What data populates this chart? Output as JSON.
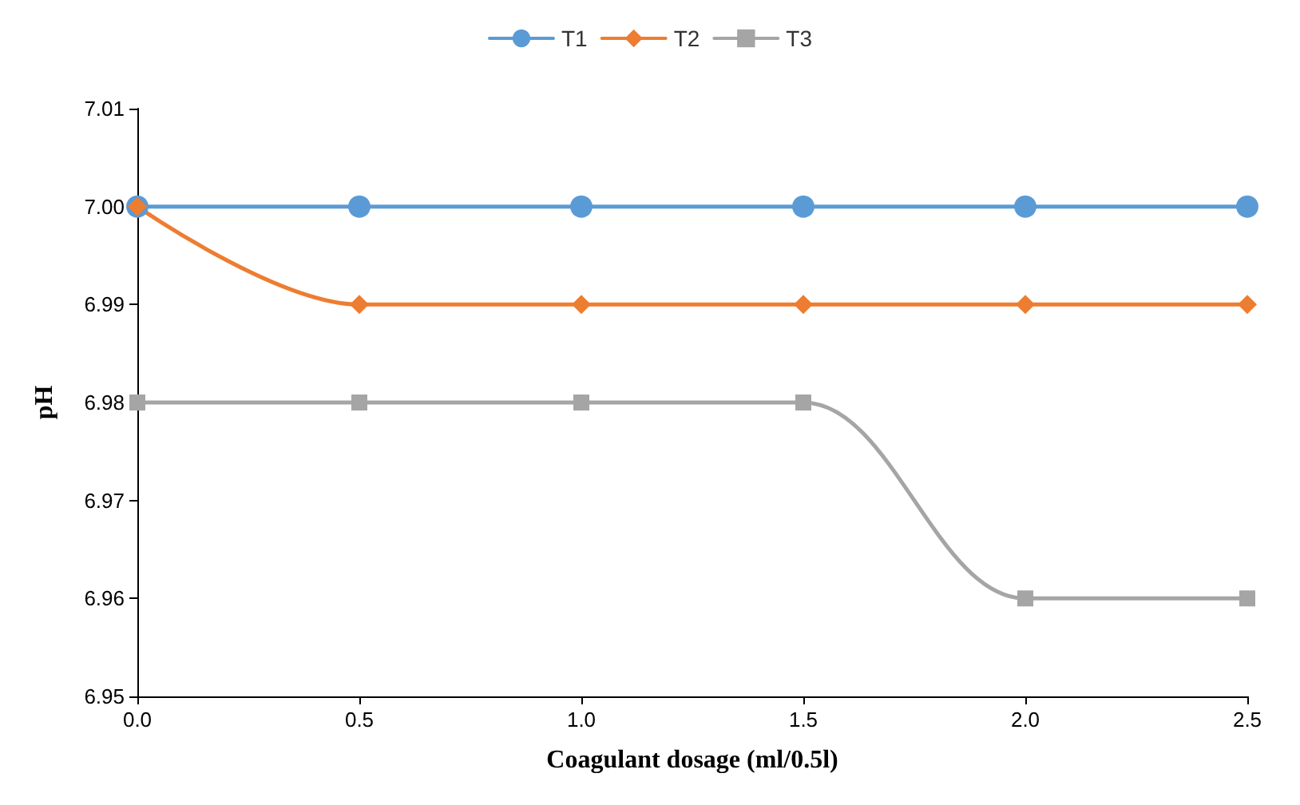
{
  "chart_data": {
    "type": "line",
    "xlabel": "Coagulant dosage (ml/0.5l)",
    "ylabel": "pH",
    "x": [
      0,
      0.5,
      1,
      1.5,
      2,
      2.5
    ],
    "series": [
      {
        "name": "T1",
        "color": "#5b9bd5",
        "marker": "circle",
        "values": [
          7.0,
          7.0,
          7.0,
          7.0,
          7.0,
          7.0
        ]
      },
      {
        "name": "T2",
        "color": "#ed7d31",
        "marker": "diamond",
        "values": [
          7.0,
          6.99,
          6.99,
          6.99,
          6.99,
          6.99
        ]
      },
      {
        "name": "T3",
        "color": "#a5a5a5",
        "marker": "square",
        "values": [
          6.98,
          6.98,
          6.98,
          6.98,
          6.96,
          6.96
        ]
      }
    ],
    "xlim": [
      0,
      2.5
    ],
    "xticks": [
      {
        "value": 0,
        "label": "0.0"
      },
      {
        "value": 0.5,
        "label": "0.5"
      },
      {
        "value": 1,
        "label": "1.0"
      },
      {
        "value": 1.5,
        "label": "1.5"
      },
      {
        "value": 2,
        "label": "2.0"
      },
      {
        "value": 2.5,
        "label": "2.5"
      }
    ],
    "ylim": [
      6.95,
      7.01
    ],
    "yticks": [
      6.95,
      6.96,
      6.97,
      6.98,
      6.99,
      {
        "value": 7.0,
        "label": "7.00"
      },
      7.01
    ],
    "grid": false,
    "legend": "top",
    "line_style": "solid"
  }
}
